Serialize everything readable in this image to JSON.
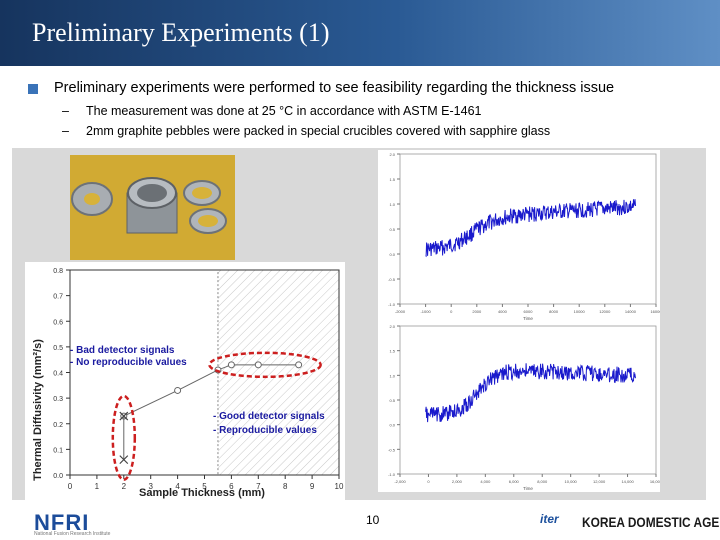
{
  "title": "Preliminary Experiments (1)",
  "bullet": "Preliminary experiments were performed to see feasibility regarding the thickness issue",
  "subs": [
    {
      "dash": "–",
      "text": "The measurement was done at 25 °C in accordance with ASTM E-1461"
    },
    {
      "dash": "–",
      "text": "2mm graphite pebbles were packed in special crucibles covered with sapphire glass"
    }
  ],
  "main_chart": {
    "ylabel": "Thermal Diffusivity (mm²/s)",
    "xlabel": "Sample Thickness (mm)",
    "yticks": [
      "0.0",
      "0.1",
      "0.2",
      "0.3",
      "0.4",
      "0.5",
      "0.6",
      "0.7",
      "0.8"
    ],
    "xticks": [
      "0",
      "1",
      "2",
      "3",
      "4",
      "5",
      "6",
      "7",
      "8",
      "9",
      "10"
    ],
    "annot_bad": [
      "- Bad detector signals",
      "- No reproducible values"
    ],
    "annot_good": [
      "- Good detector signals",
      "- Reproducible values"
    ]
  },
  "chart_data": {
    "type": "line",
    "xlabel": "Sample Thickness (mm)",
    "ylabel": "Thermal Diffusivity (mm²/s)",
    "xlim": [
      0,
      10
    ],
    "ylim": [
      0,
      0.8
    ],
    "series": [
      {
        "marker": "circle",
        "x": [
          2,
          4,
          5.5,
          6,
          7,
          8.5
        ],
        "y": [
          0.23,
          0.33,
          0.41,
          0.43,
          0.43,
          0.43
        ]
      },
      {
        "marker": "cross",
        "x": [
          2,
          2
        ],
        "y": [
          0.23,
          0.06
        ]
      }
    ],
    "shaded_region_x": [
      5.5,
      10
    ],
    "highlighted_points": [
      {
        "x": [
          2
        ],
        "note": "bad"
      },
      {
        "x": [
          6,
          7,
          8.5
        ],
        "note": "good"
      }
    ]
  },
  "signal_top": {
    "yticks": [
      "-1.0",
      "-0.5",
      "0.0",
      "0.5",
      "1.0",
      "1.5",
      "2.0"
    ],
    "xticks": [
      "-2000",
      "-1000",
      "0",
      "2000",
      "4000",
      "6000",
      "8000",
      "10000",
      "12000",
      "14000",
      "16000"
    ],
    "xlabel": "Time"
  },
  "signal_bottom": {
    "yticks": [
      "-1.0",
      "-0.5",
      "0.0",
      "0.5",
      "1.0",
      "1.5",
      "2.0"
    ],
    "xticks": [
      "-2,000",
      "0",
      "2,000",
      "4,000",
      "6,000",
      "8,000",
      "10,000",
      "12,000",
      "14,000",
      "16,000"
    ],
    "xlabel": "Time"
  },
  "colors": {
    "signal": "#1a1acc",
    "highlight": "#cc1f1f",
    "title_bar": "#1e4478",
    "bullet": "#3a73b8"
  },
  "page_number": "10",
  "footer": {
    "logo_left": "NFRI",
    "logo_left_sub": "National Fusion Research Institute",
    "logo_iter": "iter",
    "logo_right": "KOREA DOMESTIC AGENCY"
  }
}
